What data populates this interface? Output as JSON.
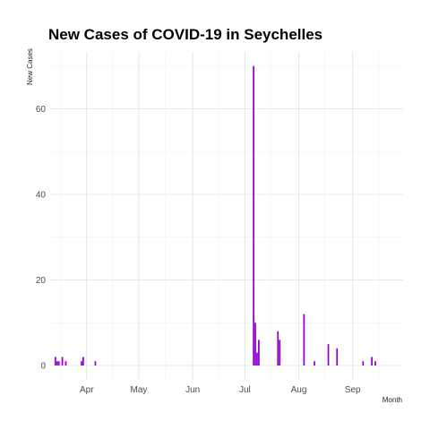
{
  "chart_data": {
    "type": "bar",
    "title": "New Cases of COVID-19 in Seychelles",
    "xlabel": "Month",
    "ylabel": "New Cases",
    "color": "#9400D3",
    "grid": true,
    "x_range": [
      "2020-03-11",
      "2020-09-30"
    ],
    "ylim": [
      0,
      72
    ],
    "x_ticks": [
      {
        "date": "2020-04-01",
        "label": "Apr"
      },
      {
        "date": "2020-05-01",
        "label": "May"
      },
      {
        "date": "2020-06-01",
        "label": "Jun"
      },
      {
        "date": "2020-07-01",
        "label": "Jul"
      },
      {
        "date": "2020-08-01",
        "label": "Aug"
      },
      {
        "date": "2020-09-01",
        "label": "Sep"
      }
    ],
    "y_ticks": [
      0,
      20,
      40,
      60
    ],
    "points": [
      {
        "date": "2020-03-14",
        "value": 2
      },
      {
        "date": "2020-03-15",
        "value": 1
      },
      {
        "date": "2020-03-16",
        "value": 1
      },
      {
        "date": "2020-03-18",
        "value": 2
      },
      {
        "date": "2020-03-20",
        "value": 1
      },
      {
        "date": "2020-03-29",
        "value": 1
      },
      {
        "date": "2020-03-30",
        "value": 2
      },
      {
        "date": "2020-04-06",
        "value": 1
      },
      {
        "date": "2020-07-06",
        "value": 70
      },
      {
        "date": "2020-07-07",
        "value": 10
      },
      {
        "date": "2020-07-08",
        "value": 3
      },
      {
        "date": "2020-07-09",
        "value": 6
      },
      {
        "date": "2020-07-20",
        "value": 8
      },
      {
        "date": "2020-07-21",
        "value": 6
      },
      {
        "date": "2020-08-04",
        "value": 12
      },
      {
        "date": "2020-08-10",
        "value": 1
      },
      {
        "date": "2020-08-18",
        "value": 5
      },
      {
        "date": "2020-08-23",
        "value": 4
      },
      {
        "date": "2020-09-07",
        "value": 1
      },
      {
        "date": "2020-09-12",
        "value": 2
      },
      {
        "date": "2020-09-14",
        "value": 1
      }
    ]
  }
}
